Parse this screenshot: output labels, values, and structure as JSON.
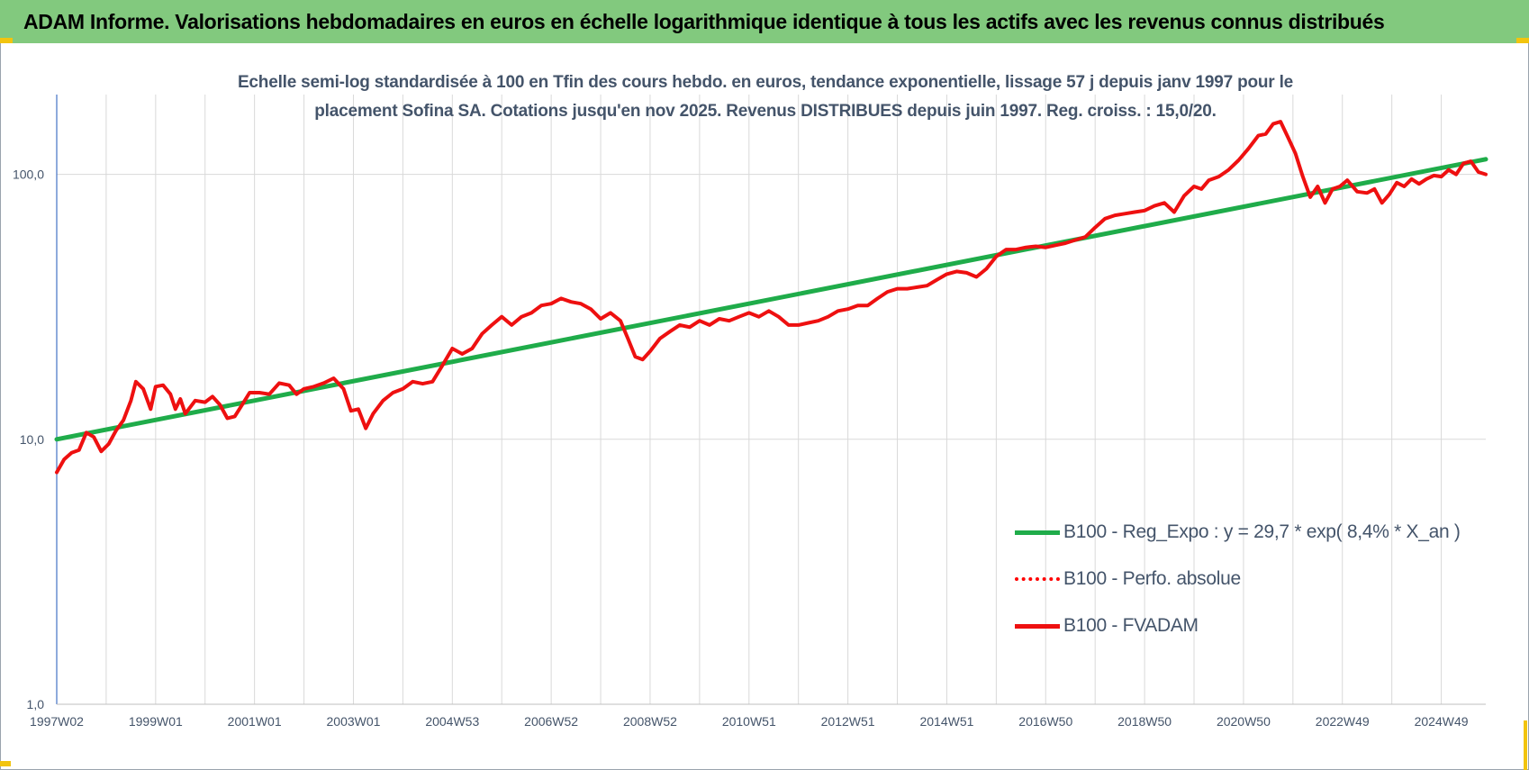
{
  "header": {
    "title": "ADAM Informe. Valorisations hebdomadaires en euros en échelle logarithmique identique à tous les actifs avec les revenus connus distribués",
    "background": "#82c97e"
  },
  "colors": {
    "trend": "#1fac4a",
    "price": "#ee1010",
    "grid": "#d9d9d9",
    "text": "#44546a",
    "accent_corner": "#f2c40f"
  },
  "chart_data": {
    "type": "line",
    "title": "Echelle semi-log standardisée à 100 en Tfin des cours hebdo. en euros, tendance exponentielle, lissage 57 j depuis janv 1997 pour le placement Sofina SA. Cotations jusqu'en nov 2025. Revenus DISTRIBUES depuis juin 1997. Reg. croiss. : 15,0/20.",
    "title_lines": [
      "Echelle semi-log standardisée à 100 en Tfin des cours hebdo. en euros, tendance exponentielle, lissage 57 j depuis janv 1997 pour le",
      "placement Sofina SA. Cotations jusqu'en nov 2025. Revenus DISTRIBUES depuis juin 1997. Reg. croiss. : 15,0/20."
    ],
    "y_scale": "log",
    "ylim": [
      1,
      200
    ],
    "y_ticks": [
      1,
      10,
      100
    ],
    "y_tick_labels": [
      "1,0",
      "10,0",
      "100,0"
    ],
    "xlim": [
      1997.0,
      2025.9
    ],
    "x_ticks": [
      1997.0,
      1999.0,
      2001.0,
      2003.0,
      2005.0,
      2007.0,
      2009.0,
      2011.0,
      2013.0,
      2015.0,
      2017.0,
      2019.0,
      2021.0,
      2023.0,
      2025.0
    ],
    "x_tick_labels": [
      "1997W02",
      "1999W01",
      "2001W01",
      "2003W01",
      "2004W53",
      "2006W52",
      "2008W52",
      "2010W51",
      "2012W51",
      "2014W51",
      "2016W50",
      "2018W50",
      "2020W50",
      "2022W49",
      "2024W49"
    ],
    "grid": true,
    "legend_position": "bottom-right",
    "series": [
      {
        "name": "B100 - Reg_Expo : y = 29,7 * exp( 8,4% *  X_an )",
        "style": "solid",
        "color": "#1fac4a",
        "points": [
          [
            1997.0,
            10.0
          ],
          [
            2025.9,
            114.0
          ]
        ]
      },
      {
        "name": "B100 - Perfo. absolue",
        "style": "dotted",
        "color": "#ff0000",
        "points": []
      },
      {
        "name": "B100 - FVADAM",
        "style": "solid",
        "color": "#ee1010",
        "points": [
          [
            1997.0,
            7.5
          ],
          [
            1997.15,
            8.4
          ],
          [
            1997.3,
            8.9
          ],
          [
            1997.45,
            9.1
          ],
          [
            1997.6,
            10.6
          ],
          [
            1997.75,
            10.2
          ],
          [
            1997.9,
            9.0
          ],
          [
            1998.05,
            9.6
          ],
          [
            1998.2,
            10.8
          ],
          [
            1998.35,
            11.8
          ],
          [
            1998.5,
            14.0
          ],
          [
            1998.6,
            16.5
          ],
          [
            1998.75,
            15.5
          ],
          [
            1998.9,
            13.0
          ],
          [
            1999.0,
            15.8
          ],
          [
            1999.15,
            16.0
          ],
          [
            1999.3,
            14.8
          ],
          [
            1999.4,
            13.0
          ],
          [
            1999.5,
            14.2
          ],
          [
            1999.6,
            12.5
          ],
          [
            1999.8,
            14.0
          ],
          [
            2000.0,
            13.8
          ],
          [
            2000.15,
            14.5
          ],
          [
            2000.3,
            13.5
          ],
          [
            2000.45,
            12.0
          ],
          [
            2000.6,
            12.2
          ],
          [
            2000.75,
            13.5
          ],
          [
            2000.9,
            15.0
          ],
          [
            2001.1,
            15.0
          ],
          [
            2001.3,
            14.8
          ],
          [
            2001.5,
            16.3
          ],
          [
            2001.7,
            16.0
          ],
          [
            2001.85,
            14.8
          ],
          [
            2002.0,
            15.5
          ],
          [
            2002.2,
            15.8
          ],
          [
            2002.4,
            16.3
          ],
          [
            2002.6,
            17.0
          ],
          [
            2002.8,
            15.5
          ],
          [
            2002.95,
            12.8
          ],
          [
            2003.1,
            13.0
          ],
          [
            2003.25,
            11.0
          ],
          [
            2003.4,
            12.5
          ],
          [
            2003.6,
            14.0
          ],
          [
            2003.8,
            15.0
          ],
          [
            2004.0,
            15.5
          ],
          [
            2004.2,
            16.5
          ],
          [
            2004.4,
            16.2
          ],
          [
            2004.6,
            16.5
          ],
          [
            2004.8,
            19.0
          ],
          [
            2005.0,
            22.0
          ],
          [
            2005.2,
            21.0
          ],
          [
            2005.4,
            22.0
          ],
          [
            2005.6,
            25.0
          ],
          [
            2005.8,
            27.0
          ],
          [
            2006.0,
            29.0
          ],
          [
            2006.2,
            27.0
          ],
          [
            2006.4,
            29.0
          ],
          [
            2006.6,
            30.0
          ],
          [
            2006.8,
            32.0
          ],
          [
            2007.0,
            32.5
          ],
          [
            2007.2,
            34.0
          ],
          [
            2007.4,
            33.0
          ],
          [
            2007.6,
            32.5
          ],
          [
            2007.8,
            31.0
          ],
          [
            2008.0,
            28.5
          ],
          [
            2008.2,
            30.0
          ],
          [
            2008.4,
            28.0
          ],
          [
            2008.55,
            24.0
          ],
          [
            2008.7,
            20.5
          ],
          [
            2008.85,
            20.0
          ],
          [
            2009.0,
            21.5
          ],
          [
            2009.2,
            24.0
          ],
          [
            2009.4,
            25.5
          ],
          [
            2009.6,
            27.0
          ],
          [
            2009.8,
            26.5
          ],
          [
            2010.0,
            28.0
          ],
          [
            2010.2,
            27.0
          ],
          [
            2010.4,
            28.5
          ],
          [
            2010.6,
            28.0
          ],
          [
            2010.8,
            29.0
          ],
          [
            2011.0,
            30.0
          ],
          [
            2011.2,
            29.0
          ],
          [
            2011.4,
            30.5
          ],
          [
            2011.6,
            29.0
          ],
          [
            2011.8,
            27.0
          ],
          [
            2012.0,
            27.0
          ],
          [
            2012.2,
            27.5
          ],
          [
            2012.4,
            28.0
          ],
          [
            2012.6,
            29.0
          ],
          [
            2012.8,
            30.5
          ],
          [
            2013.0,
            31.0
          ],
          [
            2013.2,
            32.0
          ],
          [
            2013.4,
            32.0
          ],
          [
            2013.6,
            34.0
          ],
          [
            2013.8,
            36.0
          ],
          [
            2014.0,
            37.0
          ],
          [
            2014.2,
            37.0
          ],
          [
            2014.4,
            37.5
          ],
          [
            2014.6,
            38.0
          ],
          [
            2014.8,
            40.0
          ],
          [
            2015.0,
            42.0
          ],
          [
            2015.2,
            43.0
          ],
          [
            2015.4,
            42.5
          ],
          [
            2015.6,
            41.0
          ],
          [
            2015.8,
            44.0
          ],
          [
            2016.0,
            49.0
          ],
          [
            2016.2,
            52.0
          ],
          [
            2016.4,
            52.0
          ],
          [
            2016.6,
            53.0
          ],
          [
            2016.8,
            53.5
          ],
          [
            2017.0,
            53.0
          ],
          [
            2017.2,
            54.0
          ],
          [
            2017.4,
            55.0
          ],
          [
            2017.6,
            56.5
          ],
          [
            2017.8,
            58.0
          ],
          [
            2018.0,
            63.0
          ],
          [
            2018.2,
            68.0
          ],
          [
            2018.4,
            70.0
          ],
          [
            2018.6,
            71.0
          ],
          [
            2018.8,
            72.0
          ],
          [
            2019.0,
            73.0
          ],
          [
            2019.2,
            76.0
          ],
          [
            2019.4,
            78.0
          ],
          [
            2019.6,
            72.0
          ],
          [
            2019.8,
            83.0
          ],
          [
            2020.0,
            90.0
          ],
          [
            2020.15,
            88.0
          ],
          [
            2020.3,
            95.0
          ],
          [
            2020.5,
            98.0
          ],
          [
            2020.7,
            104.0
          ],
          [
            2020.9,
            113.0
          ],
          [
            2021.1,
            125.0
          ],
          [
            2021.3,
            140.0
          ],
          [
            2021.45,
            142.0
          ],
          [
            2021.6,
            155.0
          ],
          [
            2021.75,
            158.0
          ],
          [
            2021.9,
            138.0
          ],
          [
            2022.05,
            120.0
          ],
          [
            2022.2,
            98.0
          ],
          [
            2022.35,
            82.0
          ],
          [
            2022.5,
            90.0
          ],
          [
            2022.65,
            78.0
          ],
          [
            2022.8,
            88.0
          ],
          [
            2022.95,
            90.0
          ],
          [
            2023.1,
            95.0
          ],
          [
            2023.3,
            86.0
          ],
          [
            2023.5,
            85.0
          ],
          [
            2023.65,
            88.0
          ],
          [
            2023.8,
            78.0
          ],
          [
            2023.95,
            84.0
          ],
          [
            2024.1,
            93.0
          ],
          [
            2024.25,
            90.0
          ],
          [
            2024.4,
            96.0
          ],
          [
            2024.55,
            92.0
          ],
          [
            2024.7,
            96.0
          ],
          [
            2024.85,
            99.0
          ],
          [
            2025.0,
            98.0
          ],
          [
            2025.15,
            104.0
          ],
          [
            2025.3,
            100.0
          ],
          [
            2025.45,
            110.0
          ],
          [
            2025.6,
            112.0
          ],
          [
            2025.75,
            102.0
          ],
          [
            2025.9,
            100.0
          ]
        ]
      }
    ]
  }
}
